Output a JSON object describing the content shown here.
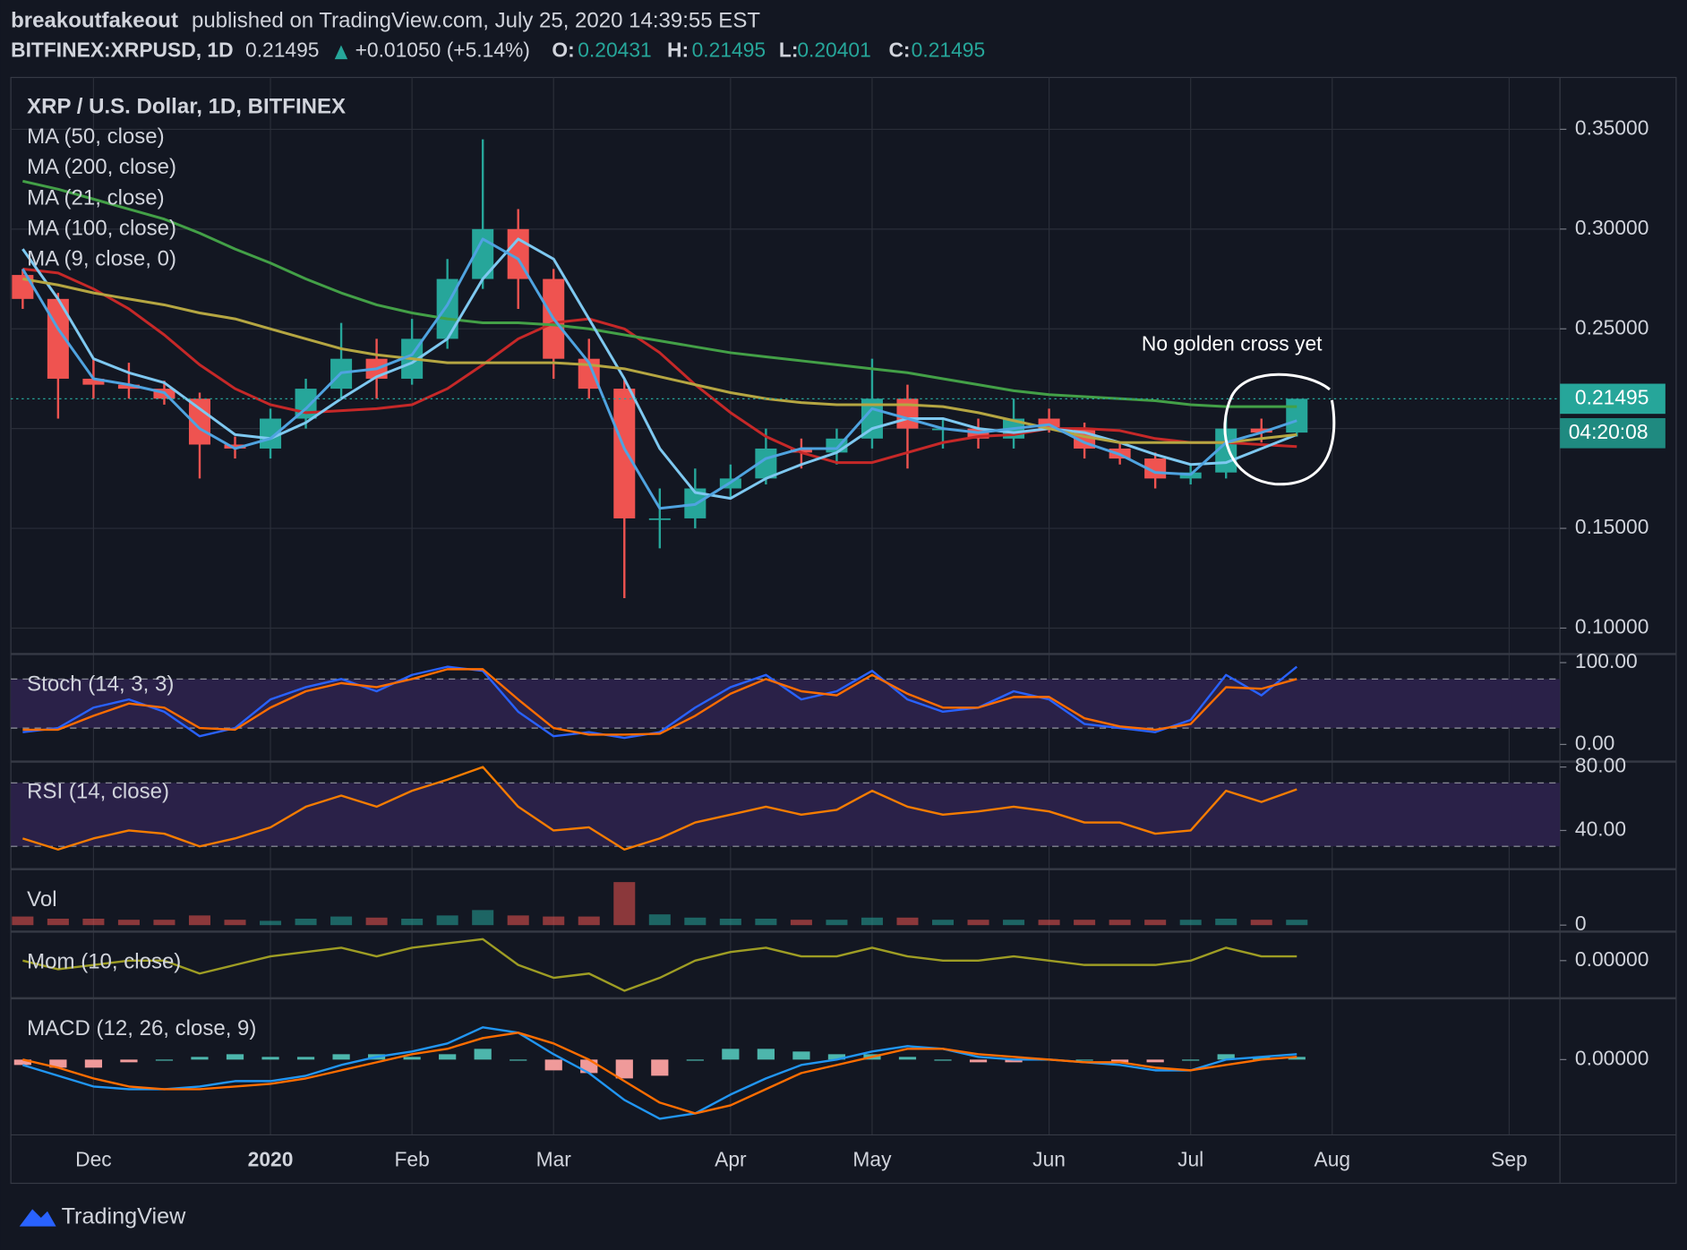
{
  "header": {
    "author": "breakoutfakeout",
    "published": "published on TradingView.com, July 25, 2020 14:39:55 EST",
    "symbol": "BITFINEX:XRPUSD, 1D",
    "last": "0.21495",
    "change": "+0.01050 (+5.14%)",
    "ohlc": [
      {
        "key": "O:",
        "value": "0.20431"
      },
      {
        "key": "H:",
        "value": "0.21495"
      },
      {
        "key": "L:",
        "value": "0.20401"
      },
      {
        "key": "C:",
        "value": "0.21495"
      }
    ]
  },
  "chart_data": [
    {
      "type": "candlestick",
      "title": "XRP / U.S. Dollar, 1D, BITFINEX",
      "categories": [
        null,
        null,
        "Dec",
        null,
        null,
        null,
        null,
        "2020",
        null,
        null,
        null,
        "Feb",
        null,
        null,
        null,
        "Mar",
        null,
        null,
        null,
        null,
        "Apr",
        null,
        null,
        null,
        "May",
        null,
        null,
        null,
        null,
        "Jun",
        null,
        null,
        null,
        "Jul",
        null,
        null,
        null,
        "Aug",
        null,
        null,
        null,
        null,
        "Sep",
        null
      ],
      "open": [
        0.277,
        0.265,
        0.225,
        0.222,
        0.22,
        0.215,
        0.192,
        0.19,
        0.205,
        0.22,
        0.235,
        0.225,
        0.245,
        0.275,
        0.3,
        0.275,
        0.235,
        0.22,
        0.155,
        0.155,
        0.17,
        0.175,
        0.19,
        0.188,
        0.195,
        0.215,
        0.2,
        0.2,
        0.195,
        0.205,
        0.2,
        0.19,
        0.185,
        0.175,
        0.178,
        0.2,
        0.198,
        null,
        null,
        null,
        null,
        null,
        null,
        null
      ],
      "high": [
        0.28,
        0.268,
        0.235,
        0.233,
        0.224,
        0.218,
        0.196,
        0.21,
        0.225,
        0.253,
        0.245,
        0.255,
        0.285,
        0.345,
        0.31,
        0.28,
        0.245,
        0.225,
        0.17,
        0.18,
        0.182,
        0.2,
        0.195,
        0.2,
        0.235,
        0.222,
        0.205,
        0.205,
        0.215,
        0.21,
        0.203,
        0.193,
        0.188,
        0.182,
        0.208,
        0.205,
        0.21495,
        null,
        null,
        null,
        null,
        null,
        null,
        null
      ],
      "low": [
        0.26,
        0.205,
        0.215,
        0.215,
        0.212,
        0.175,
        0.185,
        0.185,
        0.2,
        0.215,
        0.215,
        0.222,
        0.24,
        0.27,
        0.26,
        0.225,
        0.215,
        0.115,
        0.14,
        0.15,
        0.165,
        0.172,
        0.18,
        0.182,
        0.19,
        0.18,
        0.19,
        0.19,
        0.19,
        0.198,
        0.185,
        0.182,
        0.17,
        0.172,
        0.175,
        0.193,
        0.196,
        null,
        null,
        null,
        null,
        null,
        null,
        null
      ],
      "close": [
        0.265,
        0.225,
        0.222,
        0.22,
        0.215,
        0.192,
        0.19,
        0.205,
        0.22,
        0.235,
        0.225,
        0.245,
        0.275,
        0.3,
        0.275,
        0.235,
        0.22,
        0.155,
        0.155,
        0.17,
        0.175,
        0.19,
        0.188,
        0.195,
        0.215,
        0.2,
        0.2,
        0.195,
        0.205,
        0.2,
        0.19,
        0.185,
        0.175,
        0.178,
        0.2,
        0.198,
        0.21495,
        null,
        null,
        null,
        null,
        null,
        null,
        null
      ],
      "up_color": "#26a69a",
      "down_color": "#ef5350",
      "series": [
        {
          "name": "MA (50, close)",
          "color": "#c62828",
          "values": [
            0.28,
            0.278,
            0.27,
            0.26,
            0.247,
            0.232,
            0.22,
            0.212,
            0.208,
            0.209,
            0.21,
            0.212,
            0.22,
            0.232,
            0.245,
            0.253,
            0.255,
            0.25,
            0.238,
            0.222,
            0.208,
            0.196,
            0.188,
            0.183,
            0.183,
            0.188,
            0.193,
            0.196,
            0.197,
            0.2,
            0.2,
            0.199,
            0.195,
            0.193,
            0.193,
            0.192,
            0.191,
            null,
            null,
            null,
            null,
            null,
            null,
            null
          ]
        },
        {
          "name": "MA (200, close)",
          "color": "#43a047",
          "values": [
            0.324,
            0.32,
            0.315,
            0.31,
            0.305,
            0.298,
            0.29,
            0.283,
            0.275,
            0.268,
            0.262,
            0.258,
            0.255,
            0.253,
            0.253,
            0.252,
            0.25,
            0.247,
            0.244,
            0.241,
            0.238,
            0.236,
            0.234,
            0.232,
            0.23,
            0.228,
            0.225,
            0.222,
            0.219,
            0.217,
            0.216,
            0.215,
            0.214,
            0.212,
            0.211,
            0.211,
            0.211,
            null,
            null,
            null,
            null,
            null,
            null,
            null
          ]
        },
        {
          "name": "MA (21, close)",
          "color": "#7ec8f0",
          "values": [
            0.29,
            0.265,
            0.235,
            0.228,
            0.223,
            0.21,
            0.197,
            0.195,
            0.203,
            0.215,
            0.226,
            0.233,
            0.245,
            0.275,
            0.295,
            0.285,
            0.255,
            0.225,
            0.19,
            0.168,
            0.165,
            0.175,
            0.182,
            0.188,
            0.2,
            0.205,
            0.205,
            0.2,
            0.198,
            0.2,
            0.198,
            0.193,
            0.187,
            0.182,
            0.183,
            0.19,
            0.197,
            null,
            null,
            null,
            null,
            null,
            null,
            null
          ]
        },
        {
          "name": "MA (100, close)",
          "color": "#b5a642",
          "values": [
            0.275,
            0.272,
            0.268,
            0.265,
            0.262,
            0.258,
            0.255,
            0.25,
            0.245,
            0.24,
            0.237,
            0.235,
            0.233,
            0.233,
            0.233,
            0.233,
            0.232,
            0.23,
            0.226,
            0.222,
            0.218,
            0.215,
            0.213,
            0.212,
            0.212,
            0.212,
            0.211,
            0.208,
            0.204,
            0.2,
            0.196,
            0.193,
            0.193,
            0.193,
            0.193,
            0.195,
            0.197,
            null,
            null,
            null,
            null,
            null,
            null,
            null
          ]
        },
        {
          "name": "MA (9, close, 0)",
          "color": "#4fa3e0",
          "values": [
            0.28,
            0.25,
            0.225,
            0.222,
            0.218,
            0.2,
            0.19,
            0.195,
            0.21,
            0.228,
            0.23,
            0.237,
            0.262,
            0.295,
            0.285,
            0.255,
            0.233,
            0.19,
            0.16,
            0.162,
            0.173,
            0.185,
            0.19,
            0.19,
            0.21,
            0.205,
            0.2,
            0.198,
            0.2,
            0.202,
            0.193,
            0.187,
            0.178,
            0.177,
            0.193,
            0.198,
            0.204,
            null,
            null,
            null,
            null,
            null,
            null,
            null
          ]
        }
      ],
      "ylim": [
        0.087,
        0.376
      ],
      "yticks": [
        {
          "value": 0.35,
          "label": "0.35000"
        },
        {
          "value": 0.3,
          "label": "0.30000"
        },
        {
          "value": 0.25,
          "label": "0.25000"
        },
        {
          "value": 0.2,
          "label": "0.20000"
        },
        {
          "value": 0.15,
          "label": "0.15000"
        },
        {
          "value": 0.1,
          "label": "0.10000"
        }
      ],
      "grid": true,
      "last_price": {
        "value": 0.21495,
        "label": "0.21495"
      },
      "countdown": "04:20:08",
      "annotation": "No golden cross yet"
    },
    {
      "type": "line",
      "title": "Stoch (14, 3, 3)",
      "series": [
        {
          "color": "#2962ff",
          "values": [
            15,
            20,
            45,
            55,
            40,
            10,
            20,
            55,
            70,
            80,
            65,
            85,
            95,
            90,
            40,
            10,
            15,
            8,
            15,
            45,
            70,
            85,
            55,
            65,
            90,
            55,
            40,
            45,
            65,
            55,
            25,
            20,
            15,
            30,
            85,
            60,
            95,
            null,
            null,
            null,
            null,
            null,
            null,
            null
          ]
        },
        {
          "color": "#ff6d00",
          "values": [
            18,
            18,
            35,
            50,
            45,
            20,
            18,
            45,
            65,
            75,
            70,
            80,
            92,
            92,
            55,
            20,
            12,
            12,
            13,
            35,
            62,
            80,
            65,
            60,
            85,
            62,
            45,
            45,
            58,
            58,
            32,
            22,
            18,
            25,
            70,
            68,
            80,
            null,
            null,
            null,
            null,
            null,
            null,
            null
          ]
        }
      ],
      "bands": [
        80,
        20
      ],
      "band_color": "#2a2148",
      "ylim": [
        -21,
        110.5
      ],
      "yticks": [
        {
          "value": 100,
          "label": "100.00"
        },
        {
          "value": 0,
          "label": "0.00"
        }
      ]
    },
    {
      "type": "line",
      "title": "RSI (14, close)",
      "series": [
        {
          "color": "#f57c00",
          "values": [
            35,
            28,
            35,
            40,
            38,
            30,
            35,
            42,
            55,
            62,
            55,
            65,
            72,
            80,
            55,
            40,
            42,
            28,
            35,
            45,
            50,
            55,
            50,
            53,
            65,
            55,
            50,
            52,
            55,
            52,
            45,
            45,
            38,
            40,
            65,
            58,
            66,
            null,
            null,
            null,
            null,
            null,
            null,
            null
          ]
        }
      ],
      "bands": [
        70,
        30
      ],
      "band_color": "#2a2148",
      "ylim": [
        15.6,
        83.4
      ],
      "yticks": [
        {
          "value": 80,
          "label": "80.00"
        },
        {
          "value": 40,
          "label": "40.00"
        }
      ]
    },
    {
      "type": "bar",
      "title": "Vol",
      "values": [
        8,
        6,
        6,
        5,
        5,
        9,
        5,
        4,
        6,
        8,
        7,
        6,
        9,
        14,
        9,
        8,
        8,
        40,
        10,
        7,
        6,
        6,
        5,
        5,
        7,
        7,
        5,
        5,
        5,
        5,
        5,
        5,
        5,
        5,
        6,
        5,
        5,
        null,
        null,
        null,
        null,
        null,
        null,
        null
      ],
      "ylim": [
        -6,
        52
      ],
      "yticks": [
        0
      ]
    },
    {
      "type": "line",
      "title": "Mom (10, close)",
      "series": [
        {
          "color": "#9e9d24",
          "values": [
            0,
            -0.02,
            -0.01,
            0,
            0,
            -0.03,
            -0.01,
            0.01,
            0.02,
            0.03,
            0.01,
            0.03,
            0.04,
            0.05,
            -0.01,
            -0.04,
            -0.03,
            -0.07,
            -0.04,
            0,
            0.02,
            0.03,
            0.01,
            0.01,
            0.03,
            0.01,
            0,
            0,
            0.01,
            0,
            -0.01,
            -0.01,
            -0.01,
            0,
            0.03,
            0.01,
            0.01,
            null,
            null,
            null,
            null,
            null,
            null,
            null
          ]
        }
      ],
      "ylim": [
        -0.0875,
        0.0675
      ],
      "yticks": [
        {
          "value": 0,
          "label": "0.00000"
        }
      ]
    },
    {
      "type": "line",
      "title": "MACD (12, 26, close, 9)",
      "series": [
        {
          "color": "#2196f3",
          "values": [
            -0.002,
            -0.006,
            -0.01,
            -0.011,
            -0.011,
            -0.01,
            -0.008,
            -0.008,
            -0.006,
            -0.002,
            0.001,
            0.003,
            0.006,
            0.012,
            0.01,
            0.002,
            -0.005,
            -0.015,
            -0.022,
            -0.02,
            -0.013,
            -0.007,
            -0.002,
            0,
            0.003,
            0.005,
            0.004,
            0.001,
            0,
            0,
            -0.001,
            -0.002,
            -0.004,
            -0.004,
            0,
            0.001,
            0.002,
            null,
            null,
            null,
            null,
            null,
            null,
            null
          ]
        },
        {
          "color": "#ff6d00",
          "values": [
            0,
            -0.003,
            -0.007,
            -0.01,
            -0.011,
            -0.011,
            -0.01,
            -0.009,
            -0.007,
            -0.004,
            -0.001,
            0.002,
            0.004,
            0.008,
            0.01,
            0.006,
            0,
            -0.008,
            -0.016,
            -0.02,
            -0.017,
            -0.011,
            -0.005,
            -0.002,
            0.001,
            0.004,
            0.004,
            0.002,
            0.001,
            0,
            -0.001,
            -0.001,
            -0.003,
            -0.004,
            -0.002,
            0,
            0.001,
            null,
            null,
            null,
            null,
            null,
            null,
            null
          ]
        }
      ],
      "histogram": {
        "up_color": "#4db6ac",
        "down_color": "#ef9a9a",
        "values": [
          -0.002,
          -0.003,
          -0.003,
          -0.001,
          0,
          0.001,
          0.002,
          0.001,
          0.001,
          0.002,
          0.002,
          0.001,
          0.002,
          0.004,
          0,
          -0.004,
          -0.005,
          -0.007,
          -0.006,
          0,
          0.004,
          0.004,
          0.003,
          0.002,
          0.002,
          0.001,
          0,
          -0.001,
          -0.001,
          0,
          0,
          -0.001,
          -0.001,
          0,
          0.002,
          0.001,
          0.001,
          null,
          null,
          null,
          null,
          null,
          null,
          null
        ]
      },
      "ylim": [
        -0.028,
        0.0228
      ],
      "yticks": [
        {
          "value": 0,
          "label": "0.00000"
        }
      ]
    }
  ],
  "footer": {
    "brand": "TradingView"
  }
}
